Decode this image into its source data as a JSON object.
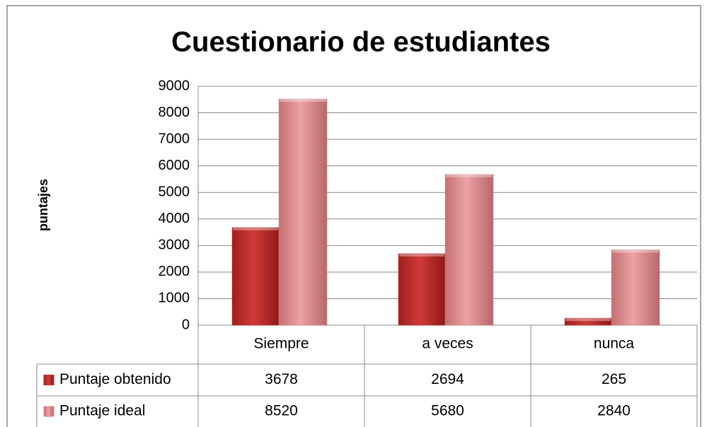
{
  "chart_data": {
    "type": "bar",
    "title": "Cuestionario de estudiantes",
    "y_label": "puntajes",
    "categories": [
      "Siempre",
      "a veces",
      "nunca"
    ],
    "series": [
      {
        "name": "Puntaje obtenido",
        "color": "#c0302f",
        "values": [
          3678,
          2694,
          265
        ]
      },
      {
        "name": "Puntaje ideal",
        "color": "#d98a8c",
        "values": [
          8520,
          5680,
          2840
        ]
      }
    ],
    "ylim": [
      0,
      9000
    ],
    "yticks": [
      0,
      1000,
      2000,
      3000,
      4000,
      5000,
      6000,
      7000,
      8000,
      9000
    ],
    "grid": true,
    "legend": "data-table"
  }
}
